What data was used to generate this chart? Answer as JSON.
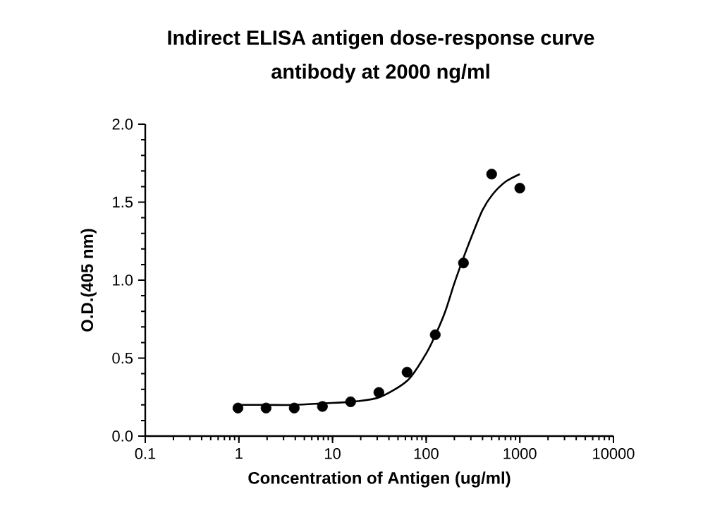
{
  "chart_data": {
    "type": "scatter",
    "title": "Indirect ELISA antigen dose-response curve",
    "subtitle": "antibody at 2000 ng/ml",
    "xlabel": "Concentration of Antigen (ug/ml)",
    "ylabel": "O.D.(405 nm)",
    "log": "x",
    "grid": false,
    "xlim": [
      0.1,
      10000
    ],
    "xticks": [
      0.1,
      1,
      10,
      100,
      1000,
      10000
    ],
    "ylim": [
      0,
      2
    ],
    "yticks": [
      {
        "value": 0,
        "label": "0.0"
      },
      {
        "value": 0.5,
        "label": "0.5"
      },
      {
        "value": 1,
        "label": "1.0"
      },
      {
        "value": 1.5,
        "label": "1.5"
      },
      {
        "value": 2,
        "label": "2.0"
      }
    ],
    "series": [
      {
        "color": "#000000",
        "marker": "circle",
        "x": [
          0.977,
          1.95,
          3.9,
          7.8,
          15.6,
          31.25,
          62.5,
          125,
          250,
          500,
          1000
        ],
        "values": [
          0.18,
          0.18,
          0.18,
          0.19,
          0.22,
          0.28,
          0.41,
          0.65,
          1.11,
          1.68,
          1.59
        ]
      },
      {
        "type": "line",
        "color": "#000000",
        "marker": "none",
        "line_style": "solid",
        "x": [
          0.977,
          2,
          4,
          8,
          16,
          32,
          64,
          100,
          128,
          160,
          200,
          256,
          320,
          400,
          512,
          700,
          1000
        ],
        "values": [
          0.2,
          0.2,
          0.2,
          0.21,
          0.22,
          0.25,
          0.36,
          0.53,
          0.66,
          0.8,
          0.98,
          1.16,
          1.31,
          1.45,
          1.55,
          1.63,
          1.68
        ]
      }
    ]
  }
}
